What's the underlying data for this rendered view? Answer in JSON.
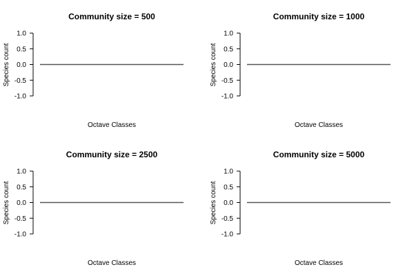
{
  "chart_data": [
    {
      "type": "line",
      "title": "Community size = 500",
      "xlabel": "Octave Classes",
      "ylabel": "Species count",
      "ylim": [
        -1.0,
        1.0
      ],
      "yticks": [
        "1.0",
        "0.5",
        "0.0",
        "-0.5",
        "-1.0"
      ],
      "ytick_values": [
        1.0,
        0.5,
        0.0,
        -0.5,
        -1.0
      ],
      "series": [
        {
          "x": [
            0,
            1
          ],
          "values": [
            0,
            0
          ]
        }
      ],
      "xlim": [
        0,
        1
      ],
      "grid": false,
      "line_color": "#555555"
    },
    {
      "type": "line",
      "title": "Community size = 1000",
      "xlabel": "Octave Classes",
      "ylabel": "Species count",
      "ylim": [
        -1.0,
        1.0
      ],
      "yticks": [
        "1.0",
        "0.5",
        "0.0",
        "-0.5",
        "-1.0"
      ],
      "ytick_values": [
        1.0,
        0.5,
        0.0,
        -0.5,
        -1.0
      ],
      "series": [
        {
          "x": [
            0,
            1
          ],
          "values": [
            0,
            0
          ]
        }
      ],
      "xlim": [
        0,
        1
      ],
      "grid": false,
      "line_color": "#555555"
    },
    {
      "type": "line",
      "title": "Community size = 2500",
      "xlabel": "Octave Classes",
      "ylabel": "Species count",
      "ylim": [
        -1.0,
        1.0
      ],
      "yticks": [
        "1.0",
        "0.5",
        "0.0",
        "-0.5",
        "-1.0"
      ],
      "ytick_values": [
        1.0,
        0.5,
        0.0,
        -0.5,
        -1.0
      ],
      "series": [
        {
          "x": [
            0,
            1
          ],
          "values": [
            0,
            0
          ]
        }
      ],
      "xlim": [
        0,
        1
      ],
      "grid": false,
      "line_color": "#555555"
    },
    {
      "type": "line",
      "title": "Community size = 5000",
      "xlabel": "Octave Classes",
      "ylabel": "Species count",
      "ylim": [
        -1.0,
        1.0
      ],
      "yticks": [
        "1.0",
        "0.5",
        "0.0",
        "-0.5",
        "-1.0"
      ],
      "ytick_values": [
        1.0,
        0.5,
        0.0,
        -0.5,
        -1.0
      ],
      "series": [
        {
          "x": [
            0,
            1
          ],
          "values": [
            0,
            0
          ]
        }
      ],
      "xlim": [
        0,
        1
      ],
      "grid": false,
      "line_color": "#555555"
    }
  ]
}
